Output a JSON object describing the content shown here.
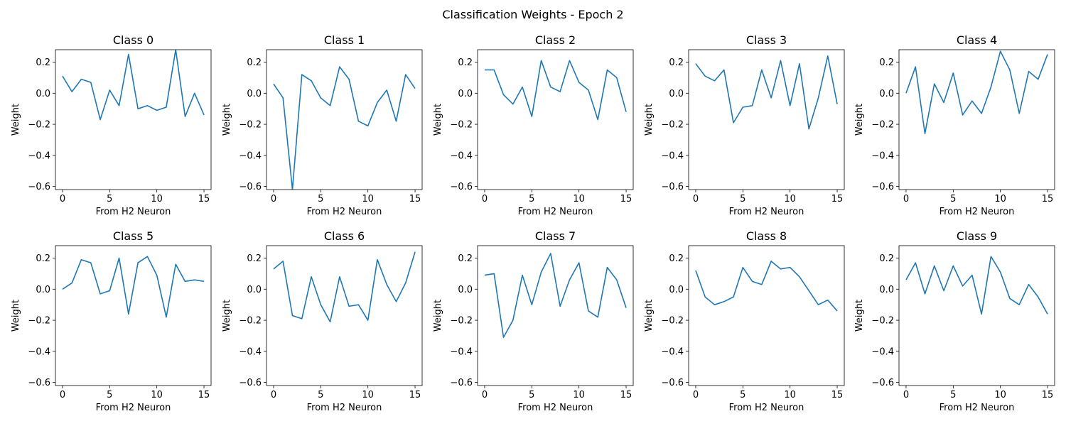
{
  "chart_data": {
    "type": "line",
    "title": "Classification Weights - Epoch 2",
    "xlabel": "From H2 Neuron",
    "ylabel": "Weight",
    "xlim": [
      -0.75,
      15.75
    ],
    "ylim": [
      -0.62,
      0.28
    ],
    "xticks": [
      0,
      5,
      10,
      15
    ],
    "yticks": [
      -0.6,
      -0.4,
      -0.2,
      0.0,
      0.2
    ],
    "xtick_labels": [
      "0",
      "5",
      "10",
      "15"
    ],
    "ytick_labels": [
      "−0.6",
      "−0.4",
      "−0.2",
      "0.0",
      "0.2"
    ],
    "line_color": "#1f77b4",
    "grid": false,
    "legend": "none",
    "layout": "2 rows x 5 columns",
    "x": [
      0,
      1,
      2,
      3,
      4,
      5,
      6,
      7,
      8,
      9,
      10,
      11,
      12,
      13,
      14,
      15
    ],
    "subplots": [
      {
        "title": "Class 0",
        "values": [
          0.11,
          0.01,
          0.09,
          0.07,
          -0.17,
          0.02,
          -0.08,
          0.25,
          -0.1,
          -0.08,
          -0.11,
          -0.09,
          0.28,
          -0.15,
          0.0,
          -0.14
        ]
      },
      {
        "title": "Class 1",
        "values": [
          0.06,
          -0.03,
          -0.62,
          0.12,
          0.08,
          -0.03,
          -0.08,
          0.17,
          0.09,
          -0.18,
          -0.21,
          -0.06,
          0.02,
          -0.18,
          0.12,
          0.03
        ]
      },
      {
        "title": "Class 2",
        "values": [
          0.15,
          0.15,
          -0.01,
          -0.07,
          0.04,
          -0.15,
          0.21,
          0.04,
          0.01,
          0.21,
          0.07,
          0.02,
          -0.17,
          0.15,
          0.1,
          -0.12
        ]
      },
      {
        "title": "Class 3",
        "values": [
          0.19,
          0.11,
          0.08,
          0.15,
          -0.19,
          -0.09,
          -0.08,
          0.15,
          -0.03,
          0.21,
          -0.08,
          0.19,
          -0.23,
          -0.03,
          0.24,
          -0.07
        ]
      },
      {
        "title": "Class 4",
        "values": [
          0.0,
          0.17,
          -0.26,
          0.06,
          -0.06,
          0.13,
          -0.14,
          -0.05,
          -0.13,
          0.04,
          0.27,
          0.15,
          -0.13,
          0.14,
          0.09,
          0.25
        ]
      },
      {
        "title": "Class 5",
        "values": [
          0.0,
          0.04,
          0.19,
          0.17,
          -0.03,
          -0.01,
          0.2,
          -0.16,
          0.17,
          0.21,
          0.09,
          -0.18,
          0.16,
          0.05,
          0.06,
          0.05
        ]
      },
      {
        "title": "Class 6",
        "values": [
          0.13,
          0.18,
          -0.17,
          -0.19,
          0.08,
          -0.1,
          -0.21,
          0.08,
          -0.11,
          -0.1,
          -0.2,
          0.19,
          0.03,
          -0.08,
          0.04,
          0.24
        ]
      },
      {
        "title": "Class 7",
        "values": [
          0.09,
          0.1,
          -0.31,
          -0.2,
          0.09,
          -0.1,
          0.11,
          0.23,
          -0.11,
          0.06,
          0.17,
          -0.14,
          -0.18,
          0.14,
          0.06,
          -0.12
        ]
      },
      {
        "title": "Class 8",
        "values": [
          0.12,
          -0.05,
          -0.1,
          -0.08,
          -0.05,
          0.14,
          0.05,
          0.03,
          0.18,
          0.13,
          0.14,
          0.08,
          -0.01,
          -0.1,
          -0.07,
          -0.14
        ]
      },
      {
        "title": "Class 9",
        "values": [
          0.06,
          0.17,
          -0.03,
          0.15,
          -0.01,
          0.15,
          0.02,
          0.09,
          -0.16,
          0.21,
          0.11,
          -0.06,
          -0.1,
          0.03,
          -0.05,
          -0.16
        ]
      }
    ]
  }
}
